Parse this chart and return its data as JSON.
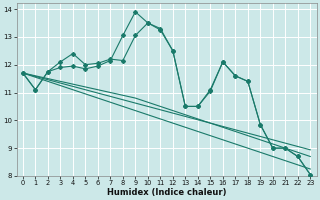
{
  "xlabel": "Humidex (Indice chaleur)",
  "xlim": [
    -0.5,
    23.5
  ],
  "ylim": [
    8,
    14.2
  ],
  "yticks": [
    8,
    9,
    10,
    11,
    12,
    13,
    14
  ],
  "xticks": [
    0,
    1,
    2,
    3,
    4,
    5,
    6,
    7,
    8,
    9,
    10,
    11,
    12,
    13,
    14,
    15,
    16,
    17,
    18,
    19,
    20,
    21,
    22,
    23
  ],
  "bg_color": "#cce8e8",
  "grid_color": "#ffffff",
  "line_color": "#1a7a6a",
  "series_jagged1": [
    11.7,
    11.1,
    11.75,
    12.1,
    12.4,
    12.0,
    12.05,
    12.2,
    12.15,
    13.05,
    13.5,
    13.3,
    12.5,
    10.5,
    10.5,
    11.1,
    12.1,
    11.6,
    11.4,
    9.85,
    9.0,
    9.0,
    8.7,
    8.05
  ],
  "series_jagged2": [
    11.7,
    11.1,
    11.75,
    11.9,
    11.95,
    11.85,
    11.95,
    12.15,
    13.05,
    13.9,
    13.5,
    13.25,
    12.5,
    10.5,
    10.5,
    11.05,
    12.1,
    11.6,
    11.4,
    9.85,
    9.0,
    9.0,
    8.7,
    8.05
  ],
  "series_trend1": [
    11.7,
    11.6,
    11.5,
    11.4,
    11.3,
    11.2,
    11.1,
    11.0,
    10.9,
    10.8,
    10.65,
    10.5,
    10.35,
    10.2,
    10.05,
    9.9,
    9.75,
    9.6,
    9.45,
    9.3,
    9.15,
    9.0,
    8.85,
    8.7
  ],
  "series_trend2": [
    11.7,
    11.58,
    11.46,
    11.34,
    11.22,
    11.1,
    10.98,
    10.86,
    10.74,
    10.62,
    10.5,
    10.38,
    10.26,
    10.14,
    10.02,
    9.9,
    9.78,
    9.66,
    9.54,
    9.42,
    9.3,
    9.18,
    9.06,
    8.94
  ],
  "series_trend3": [
    11.7,
    11.55,
    11.4,
    11.25,
    11.1,
    10.95,
    10.8,
    10.65,
    10.5,
    10.35,
    10.2,
    10.05,
    9.9,
    9.75,
    9.6,
    9.45,
    9.3,
    9.15,
    9.0,
    8.85,
    8.7,
    8.55,
    8.4,
    8.25
  ]
}
